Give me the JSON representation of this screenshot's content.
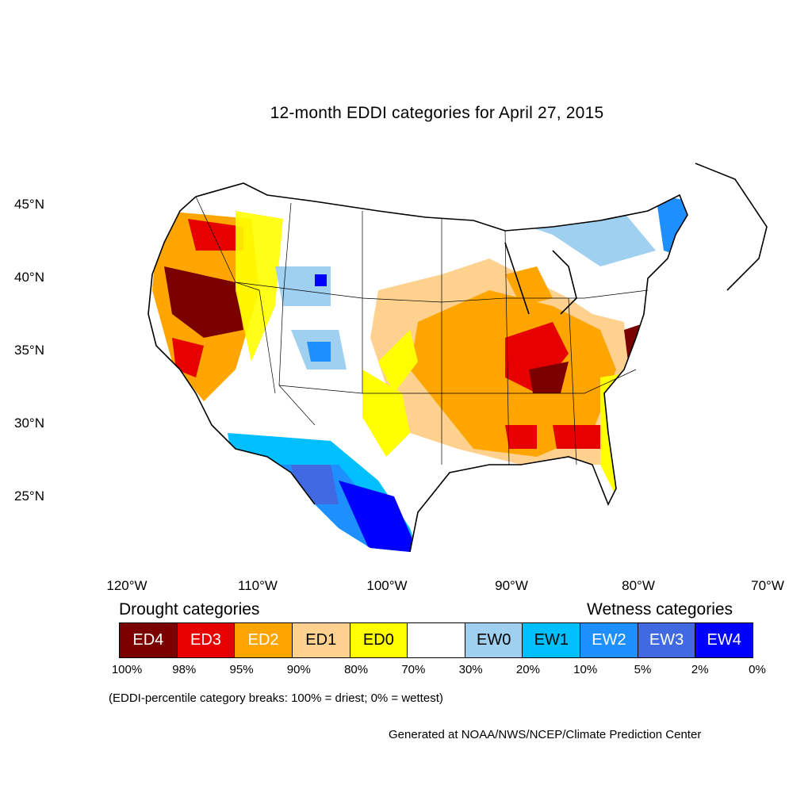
{
  "title": "12-month EDDI categories for April 27, 2015",
  "lat_labels": [
    "45°N",
    "40°N",
    "35°N",
    "30°N",
    "25°N"
  ],
  "lon_labels": [
    "120°W",
    "110°W",
    "100°W",
    "90°W",
    "80°W",
    "70°W"
  ],
  "legend": {
    "drought_heading": "Drought categories",
    "wetness_heading": "Wetness categories",
    "categories": [
      {
        "label": "ED4",
        "color": "#7a0000",
        "text_color": "#ffffff"
      },
      {
        "label": "ED3",
        "color": "#e60000",
        "text_color": "#ffffff"
      },
      {
        "label": "ED2",
        "color": "#ffa500",
        "text_color": "#ffffff"
      },
      {
        "label": "ED1",
        "color": "#fed28e",
        "text_color": "#000000"
      },
      {
        "label": "ED0",
        "color": "#ffff00",
        "text_color": "#000000"
      },
      {
        "label": "",
        "color": "#ffffff",
        "text_color": "#000000"
      },
      {
        "label": "EW0",
        "color": "#9fd0f0",
        "text_color": "#000000"
      },
      {
        "label": "EW1",
        "color": "#00bfff",
        "text_color": "#000000"
      },
      {
        "label": "EW2",
        "color": "#1e8fff",
        "text_color": "#ffffff"
      },
      {
        "label": "EW3",
        "color": "#4169e1",
        "text_color": "#ffffff"
      },
      {
        "label": "EW4",
        "color": "#0000ff",
        "text_color": "#ffffff"
      }
    ],
    "breaks": [
      "100%",
      "98%",
      "95%",
      "90%",
      "80%",
      "70%",
      "30%",
      "20%",
      "10%",
      "5%",
      "2%",
      "0%"
    ]
  },
  "note": "(EDDI-percentile category breaks: 100% = driest; 0% = wettest)",
  "credit": "Generated at NOAA/NWS/NCEP/Climate Prediction Center"
}
